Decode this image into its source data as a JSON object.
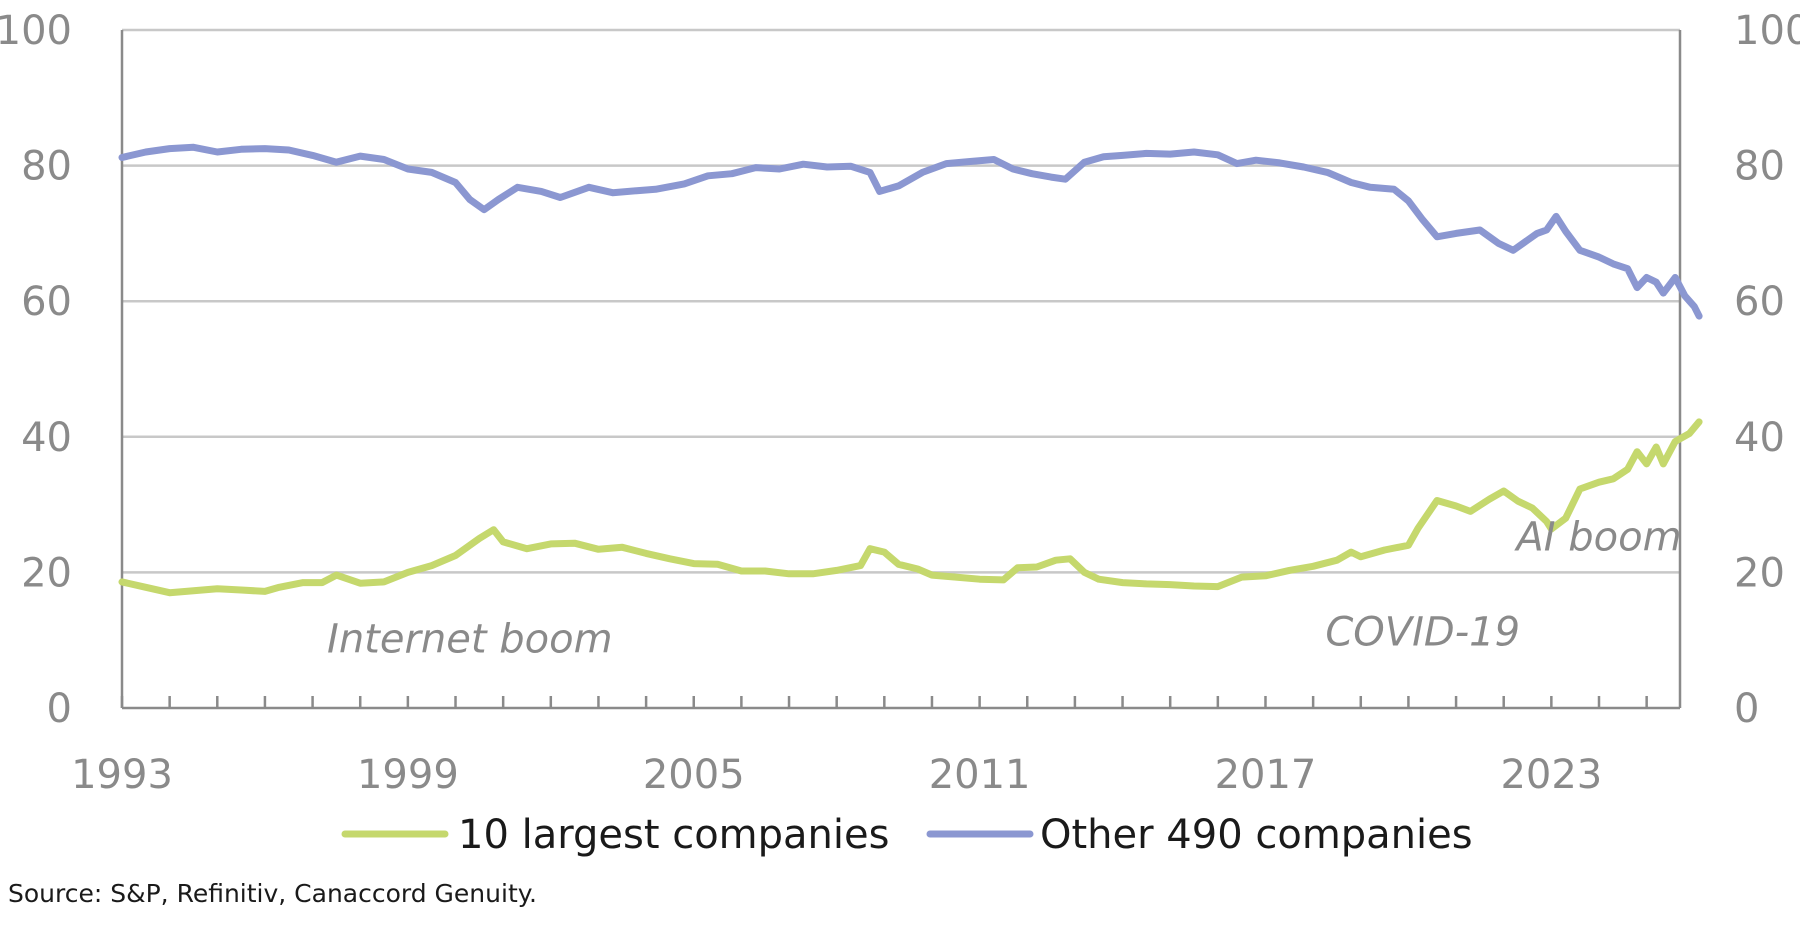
{
  "chart_data": {
    "type": "line",
    "title": "",
    "xlabel": "",
    "ylabel": "",
    "xlim": [
      1993,
      2025.7
    ],
    "ylim": [
      0,
      100
    ],
    "x_ticks": [
      1993,
      1999,
      2005,
      2011,
      2017,
      2023
    ],
    "y_ticks": [
      0,
      20,
      40,
      60,
      80,
      100
    ],
    "grid": "horizontal",
    "legend_position": "bottom",
    "series": [
      {
        "name": "10 largest companies",
        "color": "#c5d86d",
        "points": [
          [
            1993.0,
            18.6
          ],
          [
            1993.5,
            17.8
          ],
          [
            1994.0,
            17.0
          ],
          [
            1994.5,
            17.3
          ],
          [
            1995.0,
            17.6
          ],
          [
            1995.5,
            17.4
          ],
          [
            1996.0,
            17.2
          ],
          [
            1996.3,
            17.8
          ],
          [
            1996.8,
            18.5
          ],
          [
            1997.2,
            18.5
          ],
          [
            1997.5,
            19.6
          ],
          [
            1998.0,
            18.4
          ],
          [
            1998.5,
            18.6
          ],
          [
            1999.0,
            20.0
          ],
          [
            1999.5,
            21.0
          ],
          [
            2000.0,
            22.5
          ],
          [
            2000.5,
            25.0
          ],
          [
            2000.8,
            26.3
          ],
          [
            2001.0,
            24.5
          ],
          [
            2001.5,
            23.5
          ],
          [
            2002.0,
            24.2
          ],
          [
            2002.5,
            24.3
          ],
          [
            2003.0,
            23.4
          ],
          [
            2003.5,
            23.7
          ],
          [
            2004.0,
            22.8
          ],
          [
            2004.5,
            22.0
          ],
          [
            2005.0,
            21.3
          ],
          [
            2005.5,
            21.2
          ],
          [
            2006.0,
            20.2
          ],
          [
            2006.5,
            20.2
          ],
          [
            2007.0,
            19.8
          ],
          [
            2007.5,
            19.8
          ],
          [
            2008.0,
            20.3
          ],
          [
            2008.5,
            21.0
          ],
          [
            2008.7,
            23.5
          ],
          [
            2009.0,
            23.0
          ],
          [
            2009.3,
            21.2
          ],
          [
            2009.7,
            20.5
          ],
          [
            2010.0,
            19.6
          ],
          [
            2010.5,
            19.3
          ],
          [
            2011.0,
            19.0
          ],
          [
            2011.5,
            18.9
          ],
          [
            2011.8,
            20.7
          ],
          [
            2012.2,
            20.8
          ],
          [
            2012.6,
            21.8
          ],
          [
            2012.9,
            22.0
          ],
          [
            2013.2,
            20.0
          ],
          [
            2013.5,
            19.0
          ],
          [
            2014.0,
            18.5
          ],
          [
            2014.5,
            18.3
          ],
          [
            2015.0,
            18.2
          ],
          [
            2015.5,
            18.0
          ],
          [
            2016.0,
            17.9
          ],
          [
            2016.5,
            19.3
          ],
          [
            2017.0,
            19.5
          ],
          [
            2017.5,
            20.3
          ],
          [
            2018.0,
            20.9
          ],
          [
            2018.5,
            21.8
          ],
          [
            2018.8,
            23.0
          ],
          [
            2019.0,
            22.3
          ],
          [
            2019.5,
            23.3
          ],
          [
            2020.0,
            24.0
          ],
          [
            2020.2,
            26.5
          ],
          [
            2020.6,
            30.6
          ],
          [
            2021.0,
            29.8
          ],
          [
            2021.3,
            29.0
          ],
          [
            2021.7,
            30.8
          ],
          [
            2022.0,
            32.0
          ],
          [
            2022.3,
            30.5
          ],
          [
            2022.6,
            29.5
          ],
          [
            2022.9,
            27.5
          ],
          [
            2023.0,
            26.4
          ],
          [
            2023.3,
            28.0
          ],
          [
            2023.6,
            32.3
          ],
          [
            2024.0,
            33.3
          ],
          [
            2024.3,
            33.8
          ],
          [
            2024.6,
            35.2
          ],
          [
            2024.8,
            37.8
          ],
          [
            2025.0,
            36.0
          ],
          [
            2025.2,
            38.5
          ],
          [
            2025.35,
            36.0
          ],
          [
            2025.6,
            39.3
          ],
          [
            2025.9,
            40.5
          ],
          [
            2026.1,
            42.2
          ]
        ]
      },
      {
        "name": "Other 490 companies",
        "color": "#8b97d1",
        "points": [
          [
            1993.0,
            81.2
          ],
          [
            1993.5,
            82.0
          ],
          [
            1994.0,
            82.5
          ],
          [
            1994.5,
            82.7
          ],
          [
            1995.0,
            82.0
          ],
          [
            1995.5,
            82.4
          ],
          [
            1996.0,
            82.5
          ],
          [
            1996.5,
            82.3
          ],
          [
            1997.0,
            81.5
          ],
          [
            1997.5,
            80.5
          ],
          [
            1998.0,
            81.4
          ],
          [
            1998.5,
            80.9
          ],
          [
            1999.0,
            79.5
          ],
          [
            1999.5,
            79.0
          ],
          [
            2000.0,
            77.5
          ],
          [
            2000.3,
            75.0
          ],
          [
            2000.6,
            73.5
          ],
          [
            2000.9,
            75.0
          ],
          [
            2001.3,
            76.8
          ],
          [
            2001.8,
            76.2
          ],
          [
            2002.2,
            75.3
          ],
          [
            2002.8,
            76.8
          ],
          [
            2003.3,
            76.0
          ],
          [
            2003.8,
            76.3
          ],
          [
            2004.2,
            76.5
          ],
          [
            2004.8,
            77.3
          ],
          [
            2005.3,
            78.5
          ],
          [
            2005.8,
            78.8
          ],
          [
            2006.3,
            79.7
          ],
          [
            2006.8,
            79.5
          ],
          [
            2007.3,
            80.2
          ],
          [
            2007.8,
            79.8
          ],
          [
            2008.3,
            79.9
          ],
          [
            2008.7,
            79.0
          ],
          [
            2008.9,
            76.2
          ],
          [
            2009.3,
            77.0
          ],
          [
            2009.8,
            79.0
          ],
          [
            2010.3,
            80.3
          ],
          [
            2010.8,
            80.6
          ],
          [
            2011.3,
            80.9
          ],
          [
            2011.7,
            79.5
          ],
          [
            2012.1,
            78.8
          ],
          [
            2012.5,
            78.3
          ],
          [
            2012.8,
            78.0
          ],
          [
            2013.2,
            80.5
          ],
          [
            2013.6,
            81.3
          ],
          [
            2014.0,
            81.5
          ],
          [
            2014.5,
            81.8
          ],
          [
            2015.0,
            81.7
          ],
          [
            2015.5,
            82.0
          ],
          [
            2016.0,
            81.6
          ],
          [
            2016.4,
            80.3
          ],
          [
            2016.8,
            80.8
          ],
          [
            2017.3,
            80.4
          ],
          [
            2017.8,
            79.8
          ],
          [
            2018.3,
            79.0
          ],
          [
            2018.8,
            77.5
          ],
          [
            2019.2,
            76.8
          ],
          [
            2019.7,
            76.5
          ],
          [
            2020.0,
            74.8
          ],
          [
            2020.3,
            72.0
          ],
          [
            2020.6,
            69.5
          ],
          [
            2021.0,
            70.0
          ],
          [
            2021.5,
            70.5
          ],
          [
            2021.9,
            68.5
          ],
          [
            2022.2,
            67.5
          ],
          [
            2022.5,
            69.0
          ],
          [
            2022.7,
            70.0
          ],
          [
            2022.9,
            70.5
          ],
          [
            2023.1,
            72.5
          ],
          [
            2023.3,
            70.3
          ],
          [
            2023.6,
            67.5
          ],
          [
            2024.0,
            66.5
          ],
          [
            2024.3,
            65.5
          ],
          [
            2024.6,
            64.8
          ],
          [
            2024.8,
            62.0
          ],
          [
            2025.0,
            63.5
          ],
          [
            2025.2,
            62.8
          ],
          [
            2025.35,
            61.2
          ],
          [
            2025.6,
            63.5
          ],
          [
            2025.8,
            60.8
          ],
          [
            2026.0,
            59.2
          ],
          [
            2026.1,
            57.8
          ]
        ]
      }
    ],
    "annotations": [
      {
        "text": "Internet boom",
        "x": 2000.3,
        "y": 8.2
      },
      {
        "text": "COVID-19",
        "x": 2020.3,
        "y": 9.2
      },
      {
        "text": "AI boom",
        "x": 2024.0,
        "y": 23.2
      }
    ],
    "source": "Source: S&P, Refinitiv, Canaccord Genuity."
  }
}
